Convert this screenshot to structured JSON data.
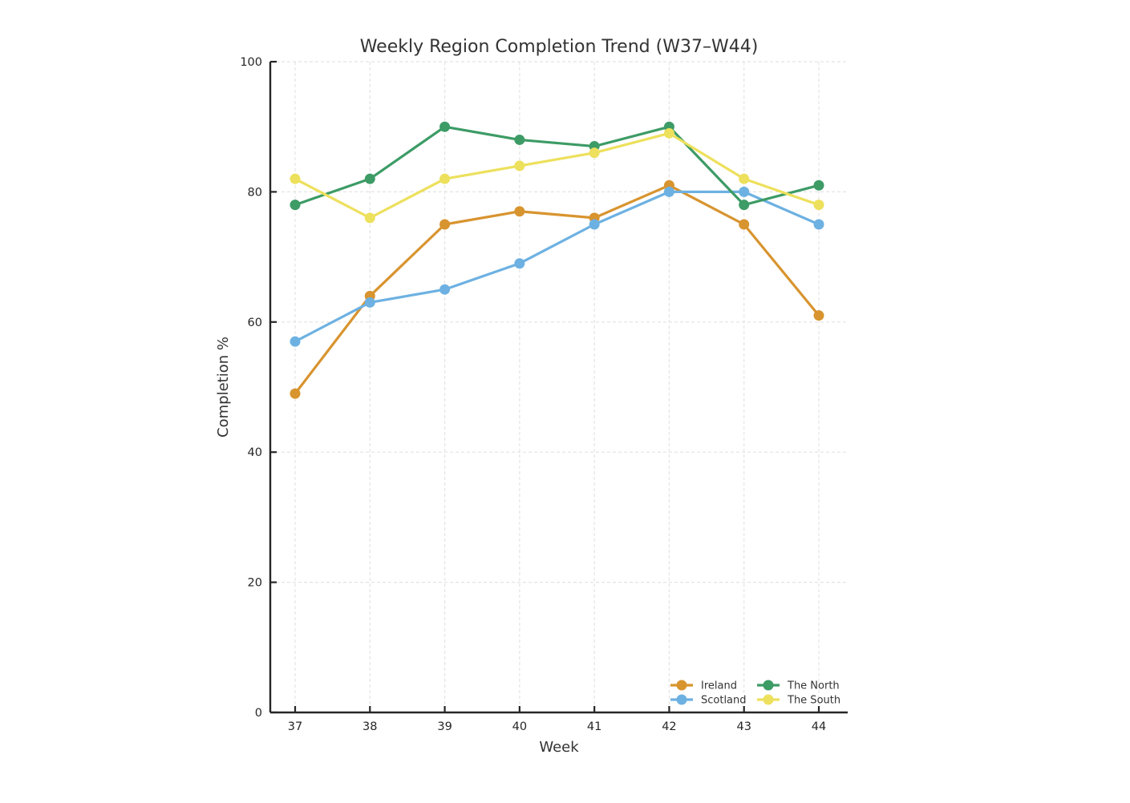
{
  "chart_data": {
    "type": "line",
    "title": "Weekly Region Completion Trend (W37–W44)",
    "xlabel": "Week",
    "ylabel": "Completion %",
    "x": [
      37,
      38,
      39,
      40,
      41,
      42,
      43,
      44
    ],
    "x_tick_labels": [
      "37",
      "38",
      "39",
      "40",
      "41",
      "42",
      "43",
      "44"
    ],
    "y_ticks": [
      0,
      20,
      40,
      60,
      80,
      100
    ],
    "y_tick_labels": [
      "0",
      "20",
      "40",
      "60",
      "80",
      "100"
    ],
    "ylim": [
      0,
      100
    ],
    "grid": true,
    "grid_style": "dashed",
    "legend_position": "lower-right-inside",
    "legend_columns": 2,
    "series": [
      {
        "name": "Ireland",
        "color": "#D8942F",
        "values": [
          49,
          64,
          75,
          77,
          76,
          81,
          75,
          61
        ]
      },
      {
        "name": "Scotland",
        "color": "#6DB1E2",
        "values": [
          57,
          63,
          65,
          69,
          75,
          80,
          80,
          75
        ]
      },
      {
        "name": "The North",
        "color": "#3D9B66",
        "values": [
          78,
          82,
          90,
          88,
          87,
          90,
          78,
          81
        ]
      },
      {
        "name": "The South",
        "color": "#EDE05C",
        "values": [
          82,
          76,
          82,
          84,
          86,
          89,
          82,
          78
        ]
      }
    ]
  },
  "styles": {
    "background": "#ffffff",
    "axis_color": "#262626",
    "grid_color": "#e4e4e4",
    "title_color": "#333333",
    "label_color": "#333333",
    "tick_label_color": "#262626",
    "legend_text_color": "#333333"
  }
}
